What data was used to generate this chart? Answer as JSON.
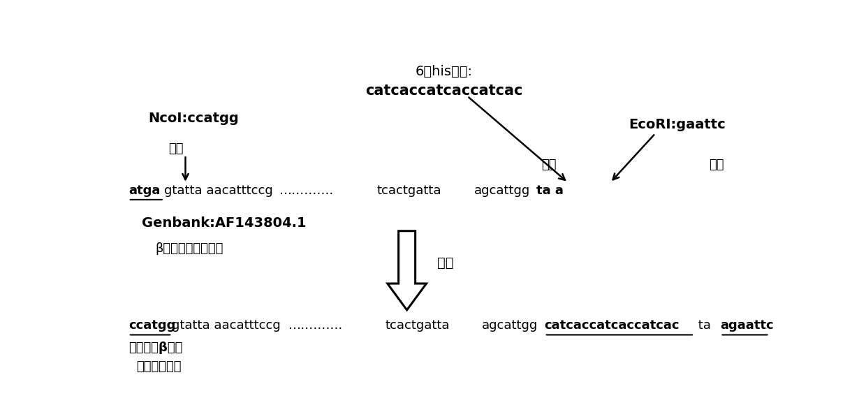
{
  "bg_color": "#ffffff",
  "fig_width": 12.4,
  "fig_height": 6.0,
  "dpi": 100,
  "his_tag_line1": "6个his标签:",
  "his_tag_line2": "catcaccatcaccatcac",
  "ncol_text": "NcoI:ccatgg",
  "tihuan_text": "替换",
  "ecori_text": "EcoRI:gaattc",
  "charu_text": "插入",
  "genbank_text": "Genbank:AF143804.1",
  "beta_text": "β内酰胺酶基因序列",
  "gaizao_text": "改造",
  "seq_atga": "atga",
  "seq_normal1": "gtatta aacatttccg",
  "seq_dots": "………….",
  "seq_tcact": "tcactgatta",
  "seq_agcattgg": "agcattgg",
  "seq_taa": "ta a",
  "bot_ccatgg": "ccatgg",
  "bot_normal1": "gtatta aacatttccg",
  "bot_dots": "………….",
  "bot_tcact": "tcactgatta",
  "bot_agcattgg": "agcattgg",
  "bot_his": "catcaccatcaccatcac",
  "bot_ta": " ta ",
  "bot_ecori": "agaattc",
  "bottom_label1": "改造后的β内酰",
  "bottom_label2": "胺酶基因序列"
}
